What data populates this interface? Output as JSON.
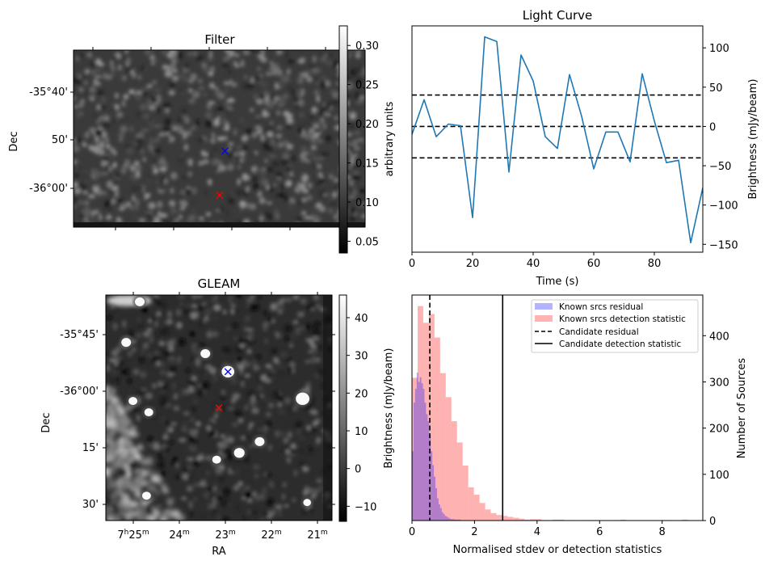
{
  "chart_data": [
    {
      "id": "filter",
      "type": "heatmap",
      "title": "Filter",
      "ylabel": "Dec",
      "ytick_labels": [
        "-35°40'",
        "50'",
        "-36°00'"
      ],
      "colorbar": {
        "label": "arbitrary units",
        "ticks": [
          0.05,
          0.1,
          0.15,
          0.2,
          0.25,
          0.3
        ],
        "tick_labels": [
          "0.05",
          "0.10",
          "0.15",
          "0.20",
          "0.25",
          "0.30"
        ],
        "range": [
          0.035,
          0.325
        ],
        "cmap": "gray"
      },
      "markers": [
        {
          "name": "candidate",
          "color": "#0000ff",
          "symbol": "x",
          "pos": [
            0.57,
            0.57
          ]
        },
        {
          "name": "reference",
          "color": "#ff0000",
          "symbol": "x",
          "pos": [
            0.55,
            0.82
          ]
        }
      ]
    },
    {
      "id": "lightcurve",
      "type": "line",
      "title": "Light Curve",
      "xlabel": "Time (s)",
      "ylabel": "Brightness (mJy/beam)",
      "xlim": [
        0,
        96
      ],
      "ylim": [
        -160,
        128
      ],
      "xticks": [
        0,
        20,
        40,
        60,
        80
      ],
      "yticks": [
        -150,
        -100,
        -50,
        0,
        50,
        100
      ],
      "ytick_labels": [
        "−150",
        "−100",
        "−50",
        "0",
        "50",
        "100"
      ],
      "series": [
        {
          "name": "light curve",
          "color": "#1f77b4",
          "x": [
            0,
            4,
            8,
            12,
            16,
            20,
            24,
            28,
            32,
            36,
            40,
            44,
            48,
            52,
            56,
            60,
            64,
            68,
            72,
            76,
            80,
            84,
            88,
            92,
            96
          ],
          "y": [
            -10,
            34,
            -13,
            3,
            1,
            -116,
            114,
            108,
            -58,
            91,
            58,
            -13,
            -28,
            66,
            13,
            -54,
            -7,
            -7,
            -45,
            67,
            7,
            -46,
            -43,
            -148,
            -78
          ]
        }
      ],
      "hlines": [
        {
          "y": 40,
          "style": "dashed",
          "color": "#000000"
        },
        {
          "y": 0,
          "style": "dashed",
          "color": "#000000"
        },
        {
          "y": -40,
          "style": "dashed",
          "color": "#000000"
        }
      ]
    },
    {
      "id": "gleam",
      "type": "heatmap",
      "title": "GLEAM",
      "xlabel": "RA",
      "ylabel": "Dec",
      "xtick_labels": [
        {
          "h": "7",
          "hs": "h",
          "m": "25",
          "ms": "m"
        },
        {
          "h": "",
          "hs": "",
          "m": "24",
          "ms": "m"
        },
        {
          "h": "",
          "hs": "",
          "m": "23",
          "ms": "m"
        },
        {
          "h": "",
          "hs": "",
          "m": "22",
          "ms": "m"
        },
        {
          "h": "",
          "hs": "",
          "m": "21",
          "ms": "m"
        }
      ],
      "ytick_labels": [
        "-35°45'",
        "-36°00'",
        "15'",
        "30'"
      ],
      "colorbar": {
        "label": "Brightness (mJy/beam)",
        "ticks": [
          -10,
          0,
          10,
          20,
          30,
          40
        ],
        "tick_labels": [
          "−10",
          "0",
          "10",
          "20",
          "30",
          "40"
        ],
        "range": [
          -14,
          46
        ],
        "cmap": "gray"
      },
      "markers": [
        {
          "name": "candidate",
          "color": "#0000ff",
          "symbol": "x",
          "pos": [
            0.54,
            0.34
          ]
        },
        {
          "name": "reference",
          "color": "#ff0000",
          "symbol": "x",
          "pos": [
            0.5,
            0.5
          ]
        }
      ],
      "sources": [
        [
          0.09,
          0.21,
          1.0
        ],
        [
          0.44,
          0.26,
          1.0
        ],
        [
          0.54,
          0.34,
          1.3
        ],
        [
          0.12,
          0.47,
          0.9
        ],
        [
          0.19,
          0.52,
          0.9
        ],
        [
          0.87,
          0.46,
          1.4
        ],
        [
          0.68,
          0.65,
          1.0
        ],
        [
          0.59,
          0.7,
          1.1
        ],
        [
          0.49,
          0.73,
          0.9
        ],
        [
          0.18,
          0.89,
          0.9
        ],
        [
          0.89,
          0.92,
          0.8
        ],
        [
          0.15,
          0.03,
          1.0
        ]
      ]
    },
    {
      "id": "histogram",
      "type": "bar",
      "xlabel": "Normalised stdev or detection statistics",
      "ylabel": "Number of Sources",
      "xlim": [
        0,
        9.3
      ],
      "ylim": [
        0,
        488
      ],
      "xticks": [
        0,
        2,
        4,
        6,
        8
      ],
      "yticks": [
        0,
        100,
        200,
        300,
        400
      ],
      "series": [
        {
          "name": "Known srcs residual",
          "color": "#0000ff",
          "alpha": 0.3,
          "bin_start": 0,
          "bin_width": 0.05,
          "counts": [
            150,
            255,
            285,
            320,
            300,
            310,
            297,
            285,
            255,
            230,
            215,
            185,
            150,
            120,
            95,
            70,
            48,
            35,
            27,
            18,
            14,
            10,
            8,
            6,
            4,
            3,
            3,
            2,
            2,
            2,
            2,
            1,
            1,
            1,
            1
          ]
        },
        {
          "name": "Known srcs detection statistic",
          "color": "#ff0000",
          "alpha": 0.3,
          "bin_start": 0,
          "bin_width": 0.18,
          "counts": [
            309,
            464,
            428,
            447,
            396,
            319,
            267,
            215,
            169,
            119,
            72,
            56,
            38,
            24,
            16,
            12,
            10,
            8,
            6,
            4,
            2,
            3,
            3,
            1,
            1,
            2,
            2,
            1,
            0,
            0,
            0,
            1,
            1,
            0,
            0,
            0,
            0,
            2,
            0,
            0,
            0,
            0,
            0,
            0,
            0,
            1,
            0,
            0,
            2,
            0,
            0,
            0,
            0,
            0,
            0,
            0,
            0,
            0,
            0,
            0,
            0,
            0,
            0,
            0,
            0,
            0,
            0,
            0,
            0,
            0,
            0,
            0,
            0,
            0,
            0,
            0,
            0,
            0,
            0,
            0,
            0,
            0,
            0,
            0,
            0,
            0,
            0,
            0,
            0,
            0,
            0,
            0,
            1
          ]
        }
      ],
      "vlines": [
        {
          "name": "Candidate residual",
          "x": 0.57,
          "style": "dashed",
          "color": "#000000"
        },
        {
          "name": "Candidate detection statistic",
          "x": 2.9,
          "style": "solid",
          "color": "#000000"
        }
      ],
      "legend": {
        "position": "top-right",
        "entries": [
          {
            "label": "Known srcs residual",
            "kind": "patch",
            "color": "#b3b3ff"
          },
          {
            "label": "Known srcs detection statistic",
            "kind": "patch",
            "color": "#ffb3b3"
          },
          {
            "label": "Candidate residual",
            "kind": "dashed",
            "color": "#000000"
          },
          {
            "label": "Candidate detection statistic",
            "kind": "solid",
            "color": "#000000"
          }
        ]
      }
    }
  ]
}
